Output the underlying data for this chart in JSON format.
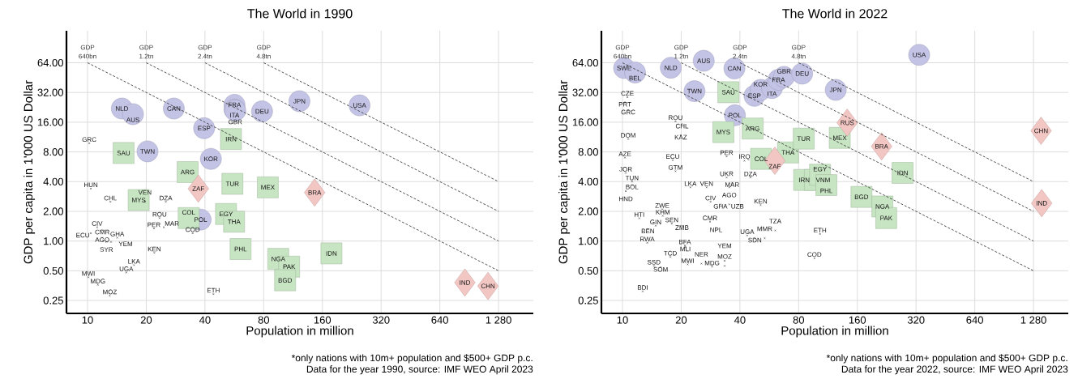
{
  "chart_data": [
    {
      "type": "scatter",
      "title": "The World in 1990",
      "xlabel": "Population in million",
      "ylabel": "GDP per capita in 1'000 US Dollar",
      "xlim": [
        7.8,
        1930
      ],
      "ylim": [
        0.185,
        135
      ],
      "log": "xy",
      "grid": true,
      "xticks": [
        10,
        20,
        40,
        80,
        160,
        320,
        640,
        {
          "value": 1280,
          "label": "1 280"
        }
      ],
      "yticks": [
        {
          "value": 0.25,
          "label": "0.25"
        },
        {
          "value": 0.5,
          "label": "0.50"
        },
        {
          "value": 1,
          "label": "1.00"
        },
        {
          "value": 2,
          "label": "2.00"
        },
        {
          "value": 4,
          "label": "4.00"
        },
        {
          "value": 8,
          "label": "8.00"
        },
        {
          "value": 16,
          "label": "16.00"
        },
        {
          "value": 32,
          "label": "32.00"
        },
        {
          "value": 64,
          "label": "64.00"
        }
      ],
      "annotations": [
        "*only nations with 10m+ population and $500+ GDP p.c.",
        "Data for the year 1990, source: IMF WEO April 2023"
      ],
      "series": [
        {
          "type": "line",
          "name": "GDP 640bn",
          "color": "#404040",
          "line_style": "dashed",
          "marker": "none",
          "x": [
            10,
            1280
          ],
          "values": [
            64,
            0.5
          ]
        },
        {
          "type": "line",
          "name": "GDP 1.2tn",
          "color": "#404040",
          "line_style": "dashed",
          "marker": "none",
          "x": [
            20,
            1280
          ],
          "values": [
            64,
            1
          ]
        },
        {
          "type": "line",
          "name": "GDP 2.4tn",
          "color": "#404040",
          "line_style": "dashed",
          "marker": "none",
          "x": [
            40,
            1280
          ],
          "values": [
            64,
            2
          ]
        },
        {
          "type": "line",
          "name": "GDP 4.8tn",
          "color": "#404040",
          "line_style": "dashed",
          "marker": "none",
          "x": [
            80,
            1280
          ],
          "values": [
            64,
            4
          ]
        },
        {
          "color": "#c3c3e6",
          "marker": "circle",
          "x": [
            15.0,
            17.1,
            27.7,
            39.6,
            56.7,
            56.7,
            57.2,
            78.5,
            20.3,
            42.9,
            38.0,
            122,
            248
          ],
          "values": [
            22.0,
            19.3,
            22.0,
            13.9,
            24,
            21.5,
            21,
            20.6,
            8.1,
            6.8,
            1.65,
            26.1,
            23.7
          ],
          "value_labels": [
            "NLD",
            "AUS",
            "CAN",
            "ESP",
            "FRA",
            "ITA",
            "GBR",
            "DEU",
            "TWN",
            "KOR",
            "POL",
            "JPN",
            "USA"
          ]
        },
        {
          "color": "#c7e5c2",
          "marker": "square",
          "x": [
            54.4,
            15.3,
            32.6,
            55.3,
            84,
            18.3,
            33,
            51.3,
            56.4,
            60.9,
            95,
            108,
            103,
            178
          ],
          "values": [
            10.8,
            7.8,
            5.0,
            3.8,
            3.5,
            2.6,
            1.71,
            1.88,
            1.57,
            0.83,
            0.66,
            0.55,
            0.4,
            0.75
          ],
          "value_labels": [
            "IRN",
            "SAU",
            "ARG",
            "TUR",
            "MEX",
            "MYS",
            "COL",
            "EGY",
            "THA",
            "PHL",
            "NGA",
            "PAK",
            "BGD",
            "IDN"
          ]
        },
        {
          "color": "#f2c6c3",
          "marker": "diamond",
          "x": [
            37,
            146,
            860,
            1130
          ],
          "values": [
            3.4,
            3.1,
            0.38,
            0.35
          ],
          "value_labels": [
            "ZAF",
            "BRA",
            "IND",
            "CHN"
          ]
        },
        {
          "color": "#1a1a1a",
          "marker": "cross",
          "x": [
            10.2,
            10.4,
            13.1,
            19.7,
            25.2,
            23.4,
            21.9,
            24.6,
            34.6,
            11.2,
            11.9,
            10.4,
            11.9,
            14.2,
            12.5,
            13.2,
            22,
            17.3,
            15.8,
            10.1,
            11.3,
            13,
            44.2
          ],
          "values": [
            9.8,
            3.4,
            2.5,
            2.5,
            2.5,
            1.71,
            1.34,
            1.38,
            1.2,
            1.38,
            1.29,
            1.2,
            1.08,
            1.08,
            0.98,
            0.98,
            0.76,
            0.57,
            0.48,
            0.43,
            0.36,
            0.28,
            0.29
          ],
          "value_labels": [
            "GRC",
            "HUN",
            "CHL",
            "VEN",
            "DZA",
            "ROU",
            "PER",
            "MAR",
            "COD",
            "CIV",
            "CMR",
            "ECU",
            "AGO",
            "GHA",
            "SYR",
            "YEM",
            "KEN",
            "LKA",
            "UGA",
            "MWI",
            "MDG",
            "MOZ",
            "ETH"
          ]
        }
      ]
    },
    {
      "type": "scatter",
      "title": "The World in 2022",
      "xlabel": "Population in million",
      "ylabel": "GDP per capita in 1'000 US Dollar",
      "xlim": [
        7.8,
        1930
      ],
      "ylim": [
        0.185,
        135
      ],
      "log": "xy",
      "grid": true,
      "xticks": [
        10,
        20,
        40,
        80,
        160,
        320,
        640,
        {
          "value": 1280,
          "label": "1 280"
        }
      ],
      "yticks": [
        {
          "value": 0.25,
          "label": "0.25"
        },
        {
          "value": 0.5,
          "label": "0.50"
        },
        {
          "value": 1,
          "label": "1.00"
        },
        {
          "value": 2,
          "label": "2.00"
        },
        {
          "value": 4,
          "label": "4.00"
        },
        {
          "value": 8,
          "label": "8.00"
        },
        {
          "value": 16,
          "label": "16.00"
        },
        {
          "value": 32,
          "label": "32.00"
        },
        {
          "value": 64,
          "label": "64.00"
        }
      ],
      "annotations": [
        "*only nations with 10m+ population and $500+ GDP p.c.",
        "Data for the year 2022, source: IMF WEO April 2023"
      ],
      "series": [
        {
          "type": "line",
          "name": "GDP 640bn",
          "color": "#404040",
          "line_style": "dashed",
          "marker": "none",
          "x": [
            10,
            1280
          ],
          "values": [
            64,
            0.5
          ]
        },
        {
          "type": "line",
          "name": "GDP 1.2tn",
          "color": "#404040",
          "line_style": "dashed",
          "marker": "none",
          "x": [
            20,
            1280
          ],
          "values": [
            64,
            1
          ]
        },
        {
          "type": "line",
          "name": "GDP 2.4tn",
          "color": "#404040",
          "line_style": "dashed",
          "marker": "none",
          "x": [
            40,
            1280
          ],
          "values": [
            64,
            2
          ]
        },
        {
          "type": "line",
          "name": "GDP 4.8tn",
          "color": "#404040",
          "line_style": "dashed",
          "marker": "none",
          "x": [
            80,
            1280
          ],
          "values": [
            64,
            4
          ]
        },
        {
          "color": "#c3c3e6",
          "marker": "circle",
          "x": [
            10.2,
            11.6,
            17.7,
            26.1,
            37.5,
            23.4,
            37.7,
            47.5,
            51.1,
            58.4,
            63.1,
            67.3,
            83.4,
            124,
            332
          ],
          "values": [
            56.6,
            51,
            57,
            67,
            56,
            33,
            18.8,
            29.6,
            34,
            35.5,
            43,
            46,
            49.7,
            34,
            77
          ],
          "value_labels": [
            "SWE",
            "BEL",
            "NLD",
            "AUS",
            "CAN",
            "TWN",
            "POL",
            "ESP",
            "KOR",
            "ITA",
            "FRA",
            "GBR",
            "DEU",
            "JPN",
            "USA"
          ]
        },
        {
          "color": "#c7e5c2",
          "marker": "square",
          "x": [
            34.9,
            32.9,
            46.5,
            51.4,
            70.6,
            85,
            130,
            85.4,
            97,
            103,
            111,
            168,
            215,
            225,
            273
          ],
          "values": [
            32.2,
            12.7,
            13.8,
            6.8,
            7.9,
            10.9,
            11.1,
            4.16,
            4.16,
            4.7,
            3.69,
            2.8,
            2.24,
            1.71,
            4.9
          ],
          "value_labels": [
            "SAU",
            "MYS",
            "ARG",
            "COL",
            "THA",
            "TUR",
            "MEX",
            "IRN",
            "VNM",
            "EGY",
            "PHL",
            "BGD",
            "NGA",
            "PAK",
            "IDN"
          ]
        },
        {
          "color": "#f2c6c3",
          "marker": "diamond",
          "x": [
            60.4,
            142,
            213,
            1400,
            1410
          ],
          "values": [
            6.5,
            15.8,
            9.1,
            13.1,
            2.42
          ],
          "value_labels": [
            "ZAF",
            "RUS",
            "BRA",
            "CHN",
            "IND"
          ]
        },
        {
          "color": "#1a1a1a",
          "marker": "cross",
          "x": [
            10.6,
            10.3,
            10.7,
            10.7,
            10.3,
            10.4,
            11.2,
            11.2,
            10.4,
            18.7,
            20.2,
            19.9,
            18.1,
            18.7,
            22.3,
            27,
            34.2,
            42.2,
            34.2,
            36.5,
            35.3,
            45.3,
            28.3,
            31.8,
            35.3,
            51.1,
            16,
            12.2,
            16.1,
            17.9,
            20.2,
            14.8,
            13.5,
            28.1,
            30.2,
            13.4,
            43.6,
            47.7,
            53.6,
            60.7,
            103,
            96.4,
            20.9,
            21,
            17.6,
            21.6,
            25.4,
            28.8,
            33.4,
            33.4,
            14.5,
            15.7,
            12.7
          ],
          "values": [
            28.7,
            25.4,
            21.2,
            10.8,
            7.0,
            4.9,
            4.0,
            3.7,
            3.2,
            16.3,
            15.3,
            11.8,
            6.6,
            5.1,
            3.5,
            3.5,
            7.2,
            6.5,
            4.4,
            3.9,
            3.5,
            4.4,
            2.5,
            2.35,
            2.35,
            2.32,
            2.1,
            1.7,
            1.8,
            1.5,
            1.43,
            1.43,
            1.32,
            1.57,
            1.36,
            0.96,
            1.14,
            1.07,
            1.07,
            1.28,
            1.18,
            0.67,
            0.9,
            0.87,
            0.69,
            0.58,
            0.59,
            0.55,
            0.56,
            0.63,
            0.56,
            0.54,
            0.31
          ],
          "value_labels": [
            "CZE",
            "PRT",
            "GRC",
            "DOM",
            "AZE",
            "JOR",
            "TUN",
            "BOL",
            "HND",
            "ROU",
            "CHL",
            "KAZ",
            "ECU",
            "GTM",
            "LKA",
            "VEN",
            "PER",
            "IRQ",
            "UKR",
            "MAR",
            "AGO",
            "DZA",
            "CIV",
            "GHA",
            "UZB",
            "KEN",
            "ZWE",
            "HTI",
            "KHM",
            "SEN",
            "ZMB",
            "GIN",
            "BEN",
            "CMR",
            "NPL",
            "RWA",
            "UGA",
            "SDN",
            "MMR",
            "TZA",
            "ETH",
            "COD",
            "BFA",
            "MLI",
            "TCD",
            "MWI",
            "NER",
            "MDG",
            "MOZ",
            "YEM",
            "SSD",
            "SOM",
            "BDI"
          ]
        }
      ]
    }
  ]
}
